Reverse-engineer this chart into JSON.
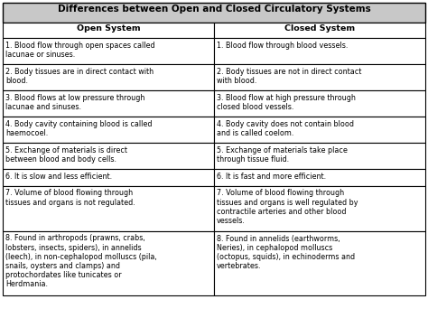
{
  "title": "Differences between Open and Closed Circulatory Systems",
  "col1_header": "Open System",
  "col2_header": "Closed System",
  "rows": [
    {
      "open": "1. Blood flow through open spaces called\nlacunae or sinuses.",
      "closed": "1. Blood flow through blood vessels."
    },
    {
      "open": "2. Body tissues are in direct contact with\nblood.",
      "closed": "2. Body tissues are not in direct contact\nwith blood."
    },
    {
      "open": "3. Blood flows at low pressure through\nlacunae and sinuses.",
      "closed": "3. Blood flow at high pressure through\nclosed blood vessels."
    },
    {
      "open": "4. Body cavity containing blood is called\nhaemocoel.",
      "closed": "4. Body cavity does not contain blood\nand is called coelom."
    },
    {
      "open": "5. Exchange of materials is direct\nbetween blood and body cells.",
      "closed": "5. Exchange of materials take place\nthrough tissue fluid."
    },
    {
      "open": "6. It is slow and less efficient.",
      "closed": "6. It is fast and more efficient."
    },
    {
      "open": "7. Volume of blood flowing through\ntissues and organs is not regulated.",
      "closed": "7. Volume of blood flowing through\ntissues and organs is well regulated by\ncontractile arteries and other blood\nvessels."
    },
    {
      "open": "8. Found in arthropods (prawns, crabs,\nlobsters, insects, spiders), in annelids\n(leech), in non-cephalopod molluscs (pila,\nsnails, oysters and clamps) and\nprotochordates like tunicates or\nHerdmania.",
      "closed": "8. Found in annelids (earthworms,\nNeries), in cephalopod molluscs\n(octopus, squids), in echinoderms and\nvertebrates."
    }
  ],
  "title_bg": "#c8c8c8",
  "header_bg": "#ffffff",
  "row_bg": "#ffffff",
  "border_color": "#000000",
  "text_color": "#000000",
  "title_fontsize": 7.5,
  "header_fontsize": 6.8,
  "cell_fontsize": 5.8,
  "fig_width": 4.74,
  "fig_height": 3.52,
  "dpi": 100
}
